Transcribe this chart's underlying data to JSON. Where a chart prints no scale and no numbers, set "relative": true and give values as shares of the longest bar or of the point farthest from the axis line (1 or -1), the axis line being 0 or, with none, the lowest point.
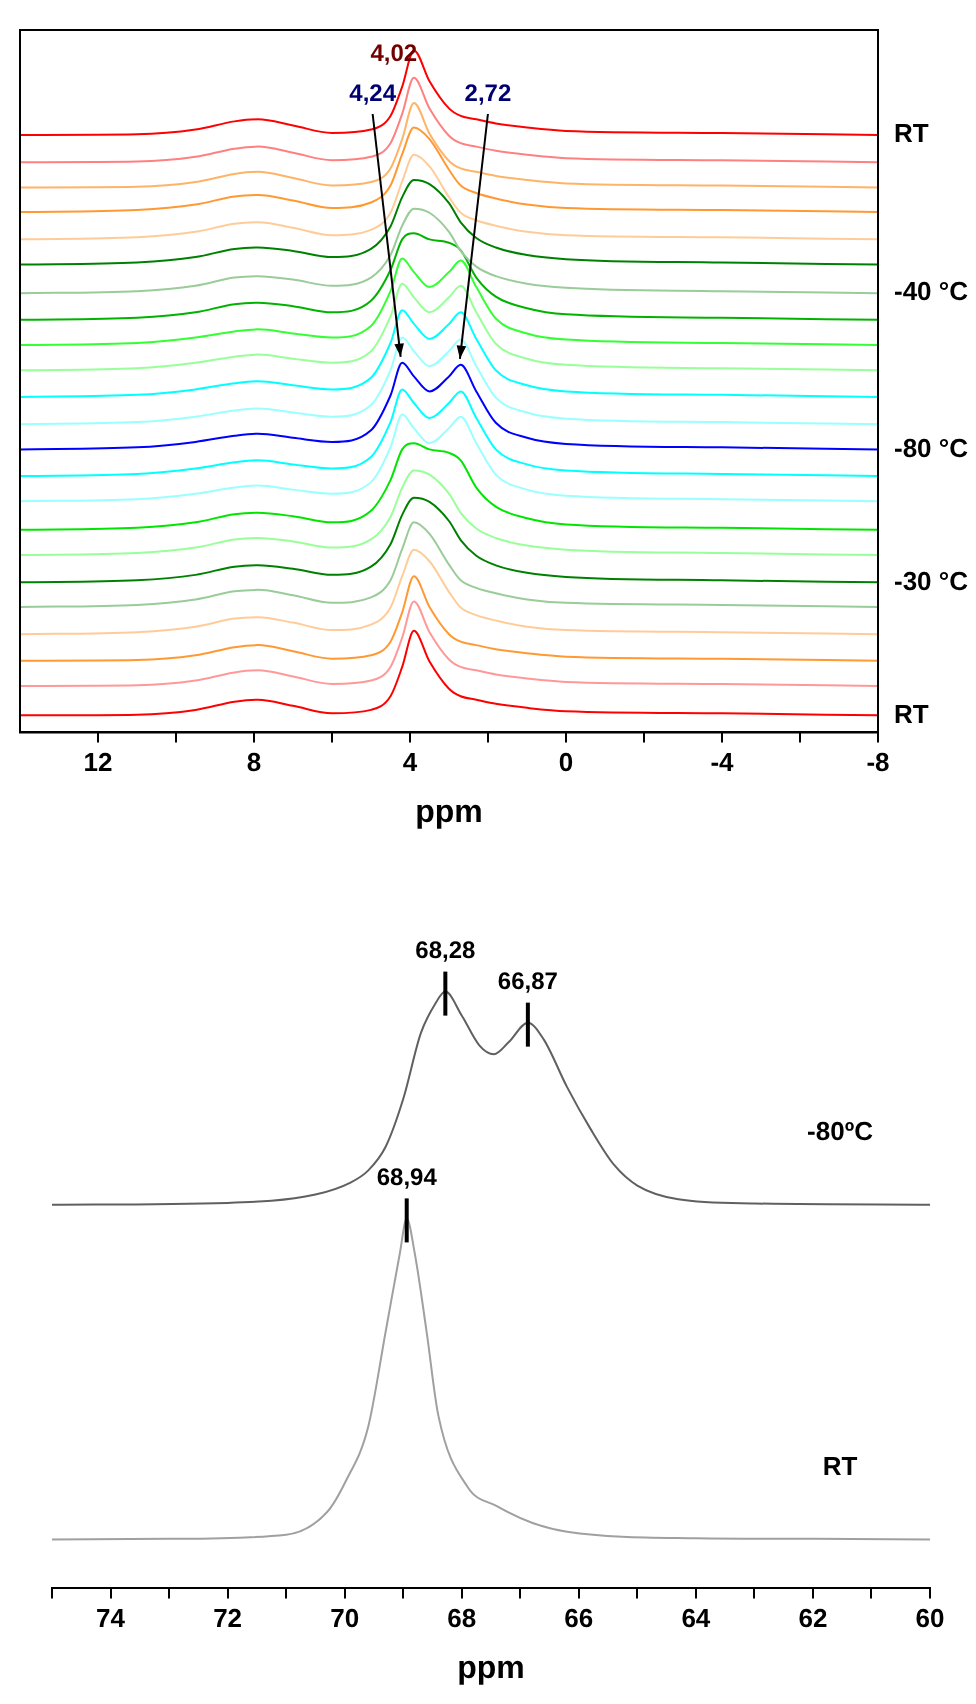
{
  "chart_data": [
    {
      "type": "line",
      "relative": true,
      "marker": "none",
      "xlabel": "ppm",
      "xlim": [
        14,
        -8
      ],
      "xticks": [
        12,
        {
          "value": 10,
          "label": null
        },
        8,
        {
          "value": 6,
          "label": null
        },
        4,
        {
          "value": 2,
          "label": null
        },
        0,
        {
          "value": -2,
          "label": null
        },
        -4,
        {
          "value": -6,
          "label": null
        },
        -8
      ],
      "x": [
        14,
        11,
        9.5,
        8.5,
        7.9,
        7,
        6,
        5,
        4.5,
        4.2,
        3.9,
        3.5,
        3.0,
        2.7,
        2.3,
        1.8,
        1,
        0,
        -4,
        -8
      ],
      "annotations": [
        {
          "text": "4,02",
          "x": 4.02,
          "y": 1.0
        },
        {
          "text": "4,24",
          "x": 4.24,
          "y": 0.542
        },
        {
          "text": "2,72",
          "x": 2.72,
          "y": 0.539
        }
      ],
      "series": [
        {
          "name": "RT",
          "color": "#ff0000",
          "values": [
            0.876,
            0.877,
            0.884,
            0.896,
            0.899,
            0.89,
            0.879,
            0.884,
            0.904,
            0.947,
            1.0,
            0.955,
            0.915,
            0.904,
            0.899,
            0.893,
            0.887,
            0.882,
            0.879,
            0.876
          ]
        },
        {
          "color": "#ff8080",
          "values": [
            0.836,
            0.837,
            0.844,
            0.856,
            0.859,
            0.85,
            0.839,
            0.844,
            0.864,
            0.907,
            0.96,
            0.915,
            0.875,
            0.864,
            0.859,
            0.853,
            0.847,
            0.842,
            0.839,
            0.836
          ]
        },
        {
          "color": "#ffb366",
          "values": [
            0.799,
            0.8,
            0.807,
            0.819,
            0.822,
            0.813,
            0.802,
            0.807,
            0.827,
            0.87,
            0.923,
            0.878,
            0.838,
            0.827,
            0.822,
            0.816,
            0.81,
            0.805,
            0.802,
            0.799
          ]
        },
        {
          "color": "#ff9933",
          "values": [
            0.763,
            0.766,
            0.774,
            0.786,
            0.788,
            0.78,
            0.769,
            0.777,
            0.802,
            0.848,
            0.887,
            0.87,
            0.825,
            0.802,
            0.791,
            0.783,
            0.774,
            0.769,
            0.766,
            0.763
          ]
        },
        {
          "color": "#ffcc99",
          "values": [
            0.723,
            0.726,
            0.734,
            0.746,
            0.748,
            0.74,
            0.729,
            0.737,
            0.762,
            0.808,
            0.847,
            0.83,
            0.785,
            0.762,
            0.751,
            0.743,
            0.734,
            0.729,
            0.726,
            0.723
          ]
        },
        {
          "color": "#008000",
          "values": [
            0.686,
            0.689,
            0.697,
            0.709,
            0.711,
            0.706,
            0.697,
            0.709,
            0.742,
            0.785,
            0.81,
            0.804,
            0.776,
            0.748,
            0.725,
            0.711,
            0.7,
            0.694,
            0.689,
            0.686
          ]
        },
        {
          "name": "-40 °C",
          "color": "#99cc99",
          "values": [
            0.644,
            0.647,
            0.655,
            0.667,
            0.669,
            0.664,
            0.655,
            0.667,
            0.7,
            0.743,
            0.768,
            0.762,
            0.734,
            0.706,
            0.683,
            0.669,
            0.658,
            0.652,
            0.647,
            0.644
          ]
        },
        {
          "color": "#00b300",
          "values": [
            0.605,
            0.608,
            0.616,
            0.628,
            0.63,
            0.625,
            0.616,
            0.633,
            0.678,
            0.723,
            0.732,
            0.723,
            0.718,
            0.707,
            0.667,
            0.639,
            0.622,
            0.613,
            0.608,
            0.605
          ]
        },
        {
          "color": "#33ff33",
          "values": [
            0.568,
            0.571,
            0.579,
            0.588,
            0.591,
            0.585,
            0.579,
            0.596,
            0.647,
            0.695,
            0.675,
            0.653,
            0.675,
            0.692,
            0.653,
            0.607,
            0.585,
            0.576,
            0.571,
            0.568
          ]
        },
        {
          "color": "#99ff99",
          "values": [
            0.531,
            0.534,
            0.542,
            0.551,
            0.554,
            0.548,
            0.542,
            0.559,
            0.61,
            0.658,
            0.638,
            0.616,
            0.638,
            0.655,
            0.616,
            0.57,
            0.548,
            0.539,
            0.534,
            0.531
          ]
        },
        {
          "color": "#00ffff",
          "values": [
            0.492,
            0.495,
            0.503,
            0.512,
            0.515,
            0.509,
            0.503,
            0.52,
            0.571,
            0.619,
            0.599,
            0.577,
            0.599,
            0.616,
            0.577,
            0.531,
            0.509,
            0.5,
            0.495,
            0.492
          ]
        },
        {
          "color": "#99ffff",
          "values": [
            0.452,
            0.455,
            0.463,
            0.472,
            0.475,
            0.469,
            0.463,
            0.48,
            0.531,
            0.579,
            0.559,
            0.537,
            0.559,
            0.576,
            0.537,
            0.491,
            0.469,
            0.46,
            0.455,
            0.452
          ]
        },
        {
          "name": "-80 °C",
          "color": "#0000ff",
          "values": [
            0.415,
            0.418,
            0.426,
            0.435,
            0.438,
            0.432,
            0.426,
            0.443,
            0.494,
            0.542,
            0.522,
            0.5,
            0.522,
            0.539,
            0.5,
            0.454,
            0.432,
            0.423,
            0.418,
            0.415
          ]
        },
        {
          "color": "#00ffff",
          "values": [
            0.376,
            0.379,
            0.387,
            0.396,
            0.399,
            0.393,
            0.387,
            0.404,
            0.455,
            0.503,
            0.483,
            0.461,
            0.483,
            0.5,
            0.461,
            0.415,
            0.393,
            0.384,
            0.379,
            0.376
          ]
        },
        {
          "color": "#99ffff",
          "values": [
            0.339,
            0.342,
            0.35,
            0.359,
            0.362,
            0.356,
            0.35,
            0.367,
            0.418,
            0.466,
            0.446,
            0.424,
            0.446,
            0.463,
            0.424,
            0.378,
            0.356,
            0.347,
            0.342,
            0.339
          ]
        },
        {
          "color": "#00e600",
          "values": [
            0.297,
            0.3,
            0.308,
            0.32,
            0.322,
            0.317,
            0.308,
            0.325,
            0.37,
            0.415,
            0.424,
            0.415,
            0.41,
            0.399,
            0.359,
            0.331,
            0.314,
            0.305,
            0.3,
            0.297
          ]
        },
        {
          "color": "#99ff99",
          "values": [
            0.26,
            0.263,
            0.271,
            0.283,
            0.285,
            0.28,
            0.271,
            0.283,
            0.316,
            0.359,
            0.384,
            0.378,
            0.35,
            0.322,
            0.299,
            0.285,
            0.274,
            0.268,
            0.263,
            0.26
          ]
        },
        {
          "name": "-30 °C",
          "color": "#008000",
          "values": [
            0.22,
            0.223,
            0.231,
            0.243,
            0.245,
            0.24,
            0.231,
            0.243,
            0.276,
            0.319,
            0.344,
            0.338,
            0.31,
            0.282,
            0.259,
            0.245,
            0.234,
            0.228,
            0.223,
            0.22
          ]
        },
        {
          "color": "#99cc99",
          "values": [
            0.184,
            0.187,
            0.195,
            0.207,
            0.209,
            0.201,
            0.19,
            0.198,
            0.223,
            0.269,
            0.308,
            0.291,
            0.246,
            0.223,
            0.212,
            0.204,
            0.195,
            0.19,
            0.187,
            0.184
          ]
        },
        {
          "color": "#ffcc99",
          "values": [
            0.144,
            0.147,
            0.155,
            0.167,
            0.169,
            0.161,
            0.15,
            0.158,
            0.183,
            0.229,
            0.268,
            0.251,
            0.206,
            0.183,
            0.172,
            0.164,
            0.155,
            0.15,
            0.147,
            0.144
          ]
        },
        {
          "color": "#ff9933",
          "values": [
            0.105,
            0.106,
            0.113,
            0.125,
            0.128,
            0.119,
            0.108,
            0.113,
            0.133,
            0.176,
            0.229,
            0.184,
            0.144,
            0.133,
            0.128,
            0.122,
            0.116,
            0.111,
            0.108,
            0.105
          ]
        },
        {
          "color": "#ff9999",
          "values": [
            0.068,
            0.069,
            0.076,
            0.088,
            0.091,
            0.082,
            0.071,
            0.076,
            0.096,
            0.139,
            0.192,
            0.147,
            0.107,
            0.096,
            0.091,
            0.085,
            0.079,
            0.074,
            0.071,
            0.068
          ]
        },
        {
          "name": "RT",
          "color": "#ff0000",
          "values": [
            0.025,
            0.026,
            0.033,
            0.045,
            0.048,
            0.039,
            0.028,
            0.033,
            0.053,
            0.096,
            0.149,
            0.104,
            0.064,
            0.053,
            0.048,
            0.042,
            0.036,
            0.031,
            0.028,
            0.025
          ]
        }
      ]
    },
    {
      "type": "line",
      "relative": true,
      "marker": "none",
      "xlabel": "ppm",
      "xlim": [
        75,
        60
      ],
      "xticks": [
        {
          "value": 75,
          "label": null
        },
        74,
        {
          "value": 73,
          "label": null
        },
        72,
        {
          "value": 71,
          "label": null
        },
        70,
        {
          "value": 69,
          "label": null
        },
        68,
        {
          "value": 67,
          "label": null
        },
        66,
        {
          "value": 65,
          "label": null
        },
        64,
        {
          "value": 63,
          "label": null
        },
        62,
        {
          "value": 61,
          "label": null
        },
        60
      ],
      "annotations": [
        {
          "text": "68,28",
          "x": 68.28,
          "y": 1.0
        },
        {
          "text": "66,87",
          "x": 66.87,
          "y": 0.948
        },
        {
          "text": "68,94",
          "x": 68.94,
          "y": 0.62
        }
      ],
      "series": [
        {
          "name": "-80ºC",
          "color": "#606060",
          "x": [
            75,
            72,
            70.5,
            69.9,
            69.6,
            69.3,
            69.0,
            68.7,
            68.45,
            68.28,
            68.0,
            67.7,
            67.45,
            67.2,
            66.87,
            66.6,
            66.2,
            65.8,
            65.4,
            65.0,
            64.3,
            63,
            60
          ],
          "values": [
            0.643,
            0.646,
            0.66,
            0.68,
            0.7,
            0.74,
            0.82,
            0.93,
            0.98,
            1.0,
            0.96,
            0.91,
            0.895,
            0.915,
            0.948,
            0.92,
            0.84,
            0.77,
            0.71,
            0.675,
            0.652,
            0.645,
            0.643
          ]
        },
        {
          "name": "RT",
          "color": "#a0a0a0",
          "x": [
            75,
            73,
            71,
            70.3,
            69.98,
            69.6,
            69.3,
            69.06,
            68.94,
            68.8,
            68.6,
            68.4,
            67.9,
            67.4,
            66.8,
            66.2,
            64,
            62,
            60
          ],
          "values": [
            0.082,
            0.083,
            0.09,
            0.128,
            0.18,
            0.27,
            0.43,
            0.56,
            0.62,
            0.56,
            0.43,
            0.29,
            0.17,
            0.138,
            0.11,
            0.095,
            0.084,
            0.083,
            0.082
          ]
        }
      ]
    }
  ]
}
